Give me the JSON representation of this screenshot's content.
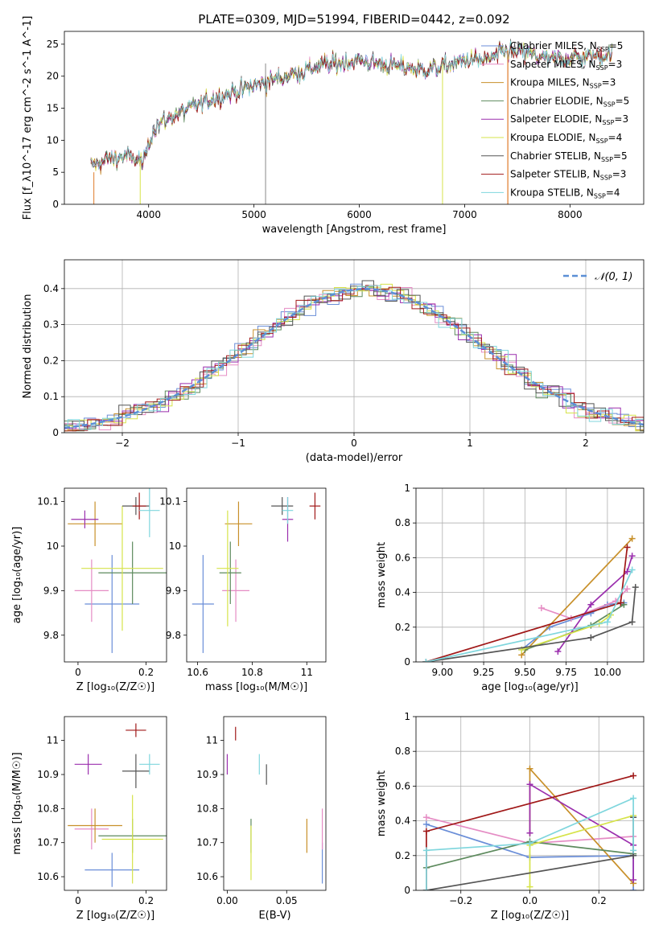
{
  "figure_title": "PLATE=0309, MJD=51994, FIBERID=0442, z=0.092",
  "series": [
    {
      "name": "Chabrier MILES, N_SSP=5",
      "label": "Chabrier MILES, N",
      "sub": "SSP",
      "tail": "=5",
      "color": "#6a8ed8"
    },
    {
      "name": "Salpeter MILES, N_SSP=3",
      "label": "Salpeter MILES, N",
      "sub": "SSP",
      "tail": "=3",
      "color": "#e58cc4"
    },
    {
      "name": "Kroupa MILES, N_SSP=3",
      "label": "Kroupa MILES, N",
      "sub": "SSP",
      "tail": "=3",
      "color": "#c8902a"
    },
    {
      "name": "Chabrier ELODIE, N_SSP=5",
      "label": "Chabrier ELODIE, N",
      "sub": "SSP",
      "tail": "=5",
      "color": "#5d8a5d"
    },
    {
      "name": "Salpeter ELODIE, N_SSP=3",
      "label": "Salpeter ELODIE, N",
      "sub": "SSP",
      "tail": "=3",
      "color": "#9b2fae"
    },
    {
      "name": "Kroupa ELODIE, N_SSP=4",
      "label": "Kroupa ELODIE, N",
      "sub": "SSP",
      "tail": "=4",
      "color": "#d6e34a"
    },
    {
      "name": "Chabrier STELIB, N_SSP=5",
      "label": "Chabrier STELIB, N",
      "sub": "SSP",
      "tail": "=5",
      "color": "#555555"
    },
    {
      "name": "Salpeter STELIB, N_SSP=3",
      "label": "Salpeter STELIB, N",
      "sub": "SSP",
      "tail": "=3",
      "color": "#a01818"
    },
    {
      "name": "Kroupa STELIB, N_SSP=4",
      "label": "Kroupa STELIB, N",
      "sub": "SSP",
      "tail": "=4",
      "color": "#7fd6dd"
    }
  ],
  "extra_colors": {
    "orange": "#e07b2a"
  },
  "chart_data": [
    {
      "id": "spectrum",
      "type": "line",
      "xlabel": "wavelength [Angstrom, rest frame]",
      "ylabel": "Flux [f_λ10^-17 erg cm^-2 s^-1 A^-1]",
      "xlim": [
        3200,
        8700
      ],
      "ylim": [
        0,
        27
      ],
      "xticks": [
        4000,
        5000,
        6000,
        7000,
        8000
      ],
      "yticks": [
        0,
        5,
        10,
        15,
        20,
        25
      ],
      "continuum": {
        "x": [
          3450,
          3600,
          3800,
          3950,
          4050,
          4200,
          4400,
          4600,
          4800,
          5000,
          5200,
          5400,
          5600,
          5800,
          6000,
          6200,
          6400,
          6600,
          6800,
          7000,
          7200,
          7400,
          7600,
          7800,
          8000,
          8200,
          8400
        ],
        "y": [
          6,
          7,
          7.5,
          6.5,
          12,
          13.5,
          15,
          16.5,
          17.5,
          18.5,
          19.5,
          20.5,
          21.5,
          22,
          22.5,
          22,
          21.5,
          21,
          21.5,
          22.5,
          22.5,
          24,
          23.5,
          22.5,
          23,
          23,
          23.5
        ]
      },
      "legend_placement": "upper right",
      "grid": false
    },
    {
      "id": "residuals",
      "type": "histogram",
      "xlabel": "(data-model)/error",
      "ylabel": "Normed distribution",
      "xlim": [
        -2.5,
        2.5
      ],
      "ylim": [
        0,
        0.48
      ],
      "xticks": [
        -2,
        -1,
        0,
        1,
        2
      ],
      "yticks": [
        0.0,
        0.1,
        0.2,
        0.3,
        0.4
      ],
      "bin_width": 0.1,
      "reference_curve": {
        "name": "N(0,1)",
        "label": "𝒩(0, 1)",
        "mean": 0.1,
        "sigma": 1.0
      },
      "legend_placement": "upper right",
      "grid": true
    },
    {
      "id": "age_vs_z",
      "type": "errorbar",
      "xlabel": "Z [log₁₀(Z/Z☉)]",
      "ylabel": "age  [log₁₀(age/yr)]",
      "xlim": [
        -0.04,
        0.26
      ],
      "ylim": [
        9.74,
        10.13
      ],
      "xticks": [
        0.0,
        0.2
      ],
      "yticks": [
        9.8,
        9.9,
        10.0,
        10.1
      ],
      "points": [
        {
          "s": 0,
          "x": 0.1,
          "y": 9.87,
          "xerr": 0.08,
          "yerr": 0.11
        },
        {
          "s": 1,
          "x": 0.04,
          "y": 9.9,
          "xerr": 0.05,
          "yerr": 0.07
        },
        {
          "s": 2,
          "x": 0.05,
          "y": 10.05,
          "xerr": 0.08,
          "yerr": 0.05
        },
        {
          "s": 3,
          "x": 0.16,
          "y": 9.94,
          "xerr": 0.1,
          "yerr": 0.07
        },
        {
          "s": 4,
          "x": 0.02,
          "y": 10.06,
          "xerr": 0.04,
          "yerr": 0.02
        },
        {
          "s": 5,
          "x": 0.13,
          "y": 9.95,
          "xerr": 0.12,
          "yerr": 0.14
        },
        {
          "s": 6,
          "x": 0.17,
          "y": 10.09,
          "xerr": 0.04,
          "yerr": 0.02
        },
        {
          "s": 7,
          "x": 0.18,
          "y": 10.09,
          "xerr": 0.02,
          "yerr": 0.03
        },
        {
          "s": 8,
          "x": 0.21,
          "y": 10.08,
          "xerr": 0.03,
          "yerr": 0.06
        }
      ]
    },
    {
      "id": "age_vs_mass",
      "type": "errorbar",
      "xlabel": "mass [log₁₀(M/M☉)]",
      "ylabel": "",
      "xlim": [
        10.56,
        11.07
      ],
      "ylim": [
        9.74,
        10.13
      ],
      "xticks": [
        10.6,
        10.8,
        11.0
      ],
      "yticks": [
        9.8,
        9.9,
        10.0,
        10.1
      ],
      "points": [
        {
          "s": 0,
          "x": 10.62,
          "y": 9.87,
          "xerr": 0.04,
          "yerr": 0.11
        },
        {
          "s": 1,
          "x": 10.74,
          "y": 9.9,
          "xerr": 0.05,
          "yerr": 0.07
        },
        {
          "s": 2,
          "x": 10.75,
          "y": 10.05,
          "xerr": 0.05,
          "yerr": 0.05
        },
        {
          "s": 3,
          "x": 10.72,
          "y": 9.94,
          "xerr": 0.04,
          "yerr": 0.07
        },
        {
          "s": 4,
          "x": 10.93,
          "y": 10.06,
          "xerr": 0.02,
          "yerr": 0.05
        },
        {
          "s": 5,
          "x": 10.71,
          "y": 9.95,
          "xerr": 0.04,
          "yerr": 0.13
        },
        {
          "s": 6,
          "x": 10.91,
          "y": 10.09,
          "xerr": 0.04,
          "yerr": 0.02
        },
        {
          "s": 7,
          "x": 11.03,
          "y": 10.09,
          "xerr": 0.02,
          "yerr": 0.03
        },
        {
          "s": 8,
          "x": 10.93,
          "y": 10.08,
          "xerr": 0.02,
          "yerr": 0.03
        }
      ]
    },
    {
      "id": "weight_vs_age",
      "type": "line",
      "xlabel": "age  [log₁₀(age/yr)]",
      "ylabel": "mass weight",
      "xlim": [
        8.84,
        10.22
      ],
      "ylim": [
        0,
        1
      ],
      "xticks": [
        9.0,
        9.25,
        9.5,
        9.75,
        10.0
      ],
      "xticklabels": [
        "9.00",
        "9.25",
        "9.50",
        "9.75",
        "10.00"
      ],
      "yticks": [
        0.0,
        0.2,
        0.4,
        0.6,
        0.8,
        1.0
      ],
      "grid": true,
      "lines": [
        {
          "s": 0,
          "x": [
            9.48,
            9.65,
            9.9,
            10.0,
            10.1
          ],
          "y": [
            0.07,
            0.2,
            0.28,
            0.33,
            0.34
          ]
        },
        {
          "s": 1,
          "x": [
            9.6,
            9.78,
            10.05,
            10.12
          ],
          "y": [
            0.31,
            0.25,
            0.35,
            0.42
          ]
        },
        {
          "s": 2,
          "x": [
            9.48,
            10.15
          ],
          "y": [
            0.04,
            0.71
          ]
        },
        {
          "s": 3,
          "x": [
            9.5,
            9.9,
            10.1
          ],
          "y": [
            0.07,
            0.21,
            0.33
          ]
        },
        {
          "s": 4,
          "x": [
            9.7,
            9.9,
            10.12,
            10.15
          ],
          "y": [
            0.06,
            0.33,
            0.52,
            0.61
          ]
        },
        {
          "s": 5,
          "x": [
            9.48,
            9.95,
            10.02
          ],
          "y": [
            0.07,
            0.22,
            0.27
          ]
        },
        {
          "s": 6,
          "x": [
            8.9,
            9.9,
            10.15,
            10.17
          ],
          "y": [
            0.0,
            0.14,
            0.23,
            0.43
          ]
        },
        {
          "s": 7,
          "x": [
            8.9,
            10.08,
            10.12
          ],
          "y": [
            0.0,
            0.34,
            0.66
          ]
        },
        {
          "s": 8,
          "x": [
            8.9,
            10.0,
            10.15
          ],
          "y": [
            0.0,
            0.23,
            0.53
          ]
        }
      ]
    },
    {
      "id": "mass_vs_z",
      "type": "errorbar",
      "xlabel": "Z [log₁₀(Z/Z☉)]",
      "ylabel": "mass [log₁₀(M/M☉)]",
      "xlim": [
        -0.04,
        0.26
      ],
      "ylim": [
        10.56,
        11.07
      ],
      "xticks": [
        0.0,
        0.2
      ],
      "yticks": [
        10.6,
        10.7,
        10.8,
        10.9,
        11.0
      ],
      "points": [
        {
          "s": 0,
          "x": 0.1,
          "y": 10.62,
          "xerr": 0.08,
          "yerr": 0.05
        },
        {
          "s": 1,
          "x": 0.04,
          "y": 10.74,
          "xerr": 0.05,
          "yerr": 0.06
        },
        {
          "s": 2,
          "x": 0.05,
          "y": 10.75,
          "xerr": 0.08,
          "yerr": 0.05
        },
        {
          "s": 3,
          "x": 0.16,
          "y": 10.72,
          "xerr": 0.1,
          "yerr": 0.05
        },
        {
          "s": 4,
          "x": 0.03,
          "y": 10.93,
          "xerr": 0.04,
          "yerr": 0.03
        },
        {
          "s": 5,
          "x": 0.16,
          "y": 10.71,
          "xerr": 0.09,
          "yerr": 0.13
        },
        {
          "s": 6,
          "x": 0.17,
          "y": 10.91,
          "xerr": 0.04,
          "yerr": 0.05
        },
        {
          "s": 7,
          "x": 0.17,
          "y": 11.03,
          "xerr": 0.03,
          "yerr": 0.02
        },
        {
          "s": 8,
          "x": 0.21,
          "y": 10.93,
          "xerr": 0.03,
          "yerr": 0.03
        }
      ]
    },
    {
      "id": "mass_vs_ebv",
      "type": "errorbar",
      "xlabel": "E(B-V)",
      "ylabel": "",
      "xlim": [
        -0.003,
        0.083
      ],
      "ylim": [
        10.56,
        11.07
      ],
      "xticks": [
        0.0,
        0.05
      ],
      "xticklabels": [
        "0.00",
        "0.05"
      ],
      "yticks": [
        10.6,
        10.7,
        10.8,
        10.9,
        11.0
      ],
      "points": [
        {
          "s": 0,
          "x": 0.08,
          "y": 10.64,
          "xerr": 0.0,
          "yerr": 0.06
        },
        {
          "s": 1,
          "x": 0.08,
          "y": 10.74,
          "xerr": 0.0,
          "yerr": 0.06
        },
        {
          "s": 2,
          "x": 0.067,
          "y": 10.72,
          "xerr": 0.0,
          "yerr": 0.05
        },
        {
          "s": 3,
          "x": 0.02,
          "y": 10.72,
          "xerr": 0.0,
          "yerr": 0.05
        },
        {
          "s": 4,
          "x": 0.0,
          "y": 10.93,
          "xerr": 0.0,
          "yerr": 0.03
        },
        {
          "s": 5,
          "x": 0.02,
          "y": 10.67,
          "xerr": 0.0,
          "yerr": 0.08
        },
        {
          "s": 6,
          "x": 0.033,
          "y": 10.9,
          "xerr": 0.0,
          "yerr": 0.03
        },
        {
          "s": 7,
          "x": 0.007,
          "y": 11.02,
          "xerr": 0.0,
          "yerr": 0.02
        },
        {
          "s": 8,
          "x": 0.027,
          "y": 10.93,
          "xerr": 0.0,
          "yerr": 0.03
        }
      ]
    },
    {
      "id": "weight_vs_z",
      "type": "line",
      "xlabel": "Z [log₁₀(Z/Z☉)]",
      "ylabel": "mass weight",
      "xlim": [
        -0.33,
        0.33
      ],
      "ylim": [
        0,
        1
      ],
      "xticks": [
        -0.2,
        0.0,
        0.2
      ],
      "xticklabels": [
        "−0.2",
        "0.0",
        "0.2"
      ],
      "yticks": [
        0.0,
        0.2,
        0.4,
        0.6,
        0.8,
        1.0
      ],
      "grid": true,
      "lines": [
        {
          "s": 0,
          "x": [
            -0.3,
            0.0,
            0.3,
            0.3
          ],
          "y": [
            0.38,
            0.19,
            0.2,
            0.0
          ]
        },
        {
          "s": 1,
          "x": [
            -0.3,
            0.0,
            0.3
          ],
          "y": [
            0.42,
            0.27,
            0.31
          ]
        },
        {
          "s": 2,
          "x": [
            0.0,
            0.0,
            0.3
          ],
          "y": [
            0.33,
            0.7,
            0.04
          ]
        },
        {
          "s": 3,
          "x": [
            -0.3,
            0.0,
            0.3
          ],
          "y": [
            0.13,
            0.28,
            0.21
          ]
        },
        {
          "s": 4,
          "x": [
            0.0,
            0.0,
            0.3,
            0.3
          ],
          "y": [
            0.33,
            0.61,
            0.26,
            0.06
          ]
        },
        {
          "s": 5,
          "x": [
            0.0,
            0.0,
            0.3
          ],
          "y": [
            0.02,
            0.26,
            0.43
          ]
        },
        {
          "s": 6,
          "x": [
            -0.3,
            0.3,
            0.3
          ],
          "y": [
            0.0,
            0.2,
            0.42
          ]
        },
        {
          "s": 7,
          "x": [
            -0.3,
            -0.3,
            0.3
          ],
          "y": [
            0.0,
            0.34,
            0.66
          ]
        },
        {
          "s": 8,
          "x": [
            -0.3,
            -0.3,
            0.0,
            0.3,
            0.3
          ],
          "y": [
            0.0,
            0.23,
            0.27,
            0.53,
            0.23
          ]
        }
      ]
    }
  ]
}
